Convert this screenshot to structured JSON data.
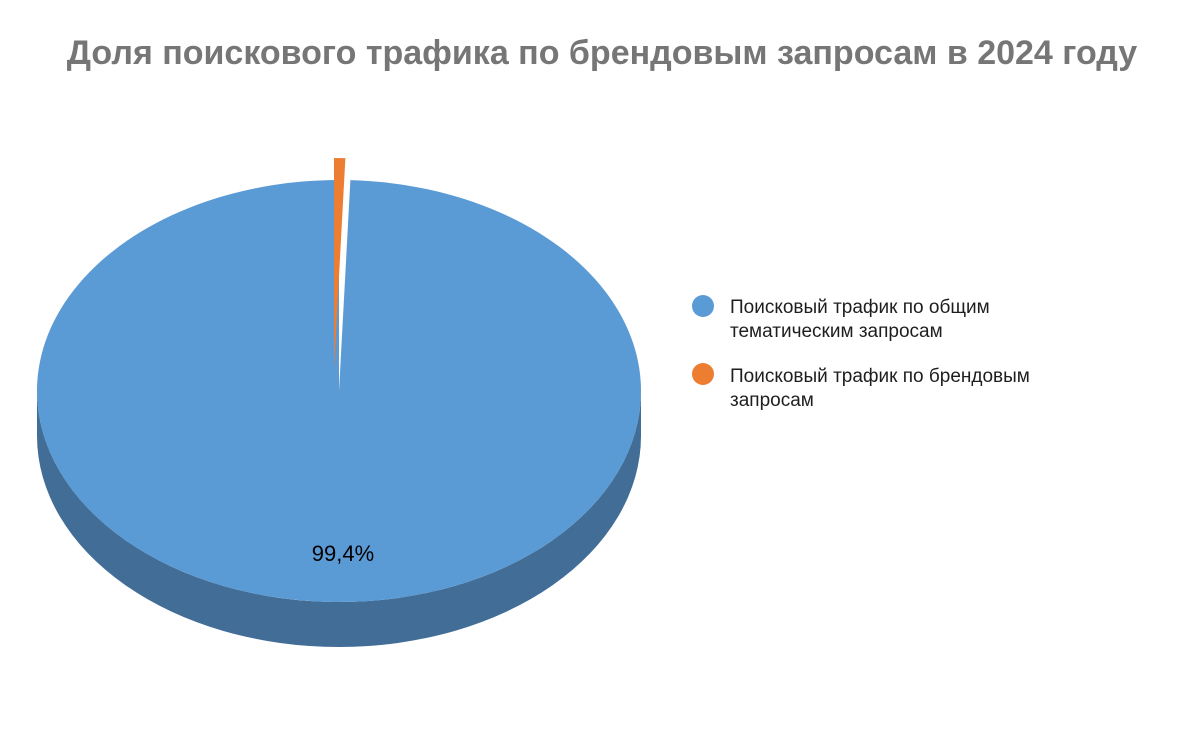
{
  "chart_data": {
    "type": "pie",
    "title": "Доля поискового трафика по брендовым запросам в 2024 году",
    "series": [
      {
        "name": "Поисковый трафик по общим тематическим запросам",
        "name_lines": [
          "Поисковый трафик по общим",
          "тематическим запросам"
        ],
        "value": 99.4,
        "color": "#5b9bd5",
        "side_color": "#416d96",
        "label": "99,4%"
      },
      {
        "name": "Поисковый трафик по брендовым запросам",
        "name_lines": [
          "Поисковый трафик по брендовым",
          "запросам"
        ],
        "value": 0.6,
        "color": "#ed7d31",
        "side_color": "#b35f25",
        "label": ""
      }
    ],
    "legend_position": "right",
    "style": "3d-pie-exploded-small-slice"
  }
}
